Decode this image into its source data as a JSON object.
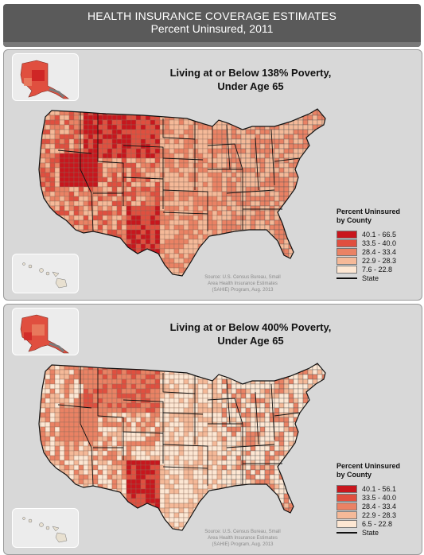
{
  "header": {
    "title": "HEALTH INSURANCE COVERAGE ESTIMATES",
    "subtitle": "Percent Uninsured, 2011"
  },
  "colors": {
    "c1": "#c8161d",
    "c2": "#e04f3f",
    "c3": "#ea8264",
    "c4": "#f5b998",
    "c5": "#fde7d3",
    "panel": "#d8d8d8",
    "header": "#5a5a5a"
  },
  "panels": [
    {
      "title_line1": "Living at or Below 138% Poverty,",
      "title_line2": "Under Age 65",
      "legend_title_line1": "Percent Uninsured",
      "legend_title_line2": "by County",
      "legend": [
        "40.1 - 66.5",
        "33.5 - 40.0",
        "28.4 - 33.4",
        "22.9 - 28.3",
        "7.6 - 22.8"
      ],
      "state_label": "State",
      "source": [
        "Source: U.S. Census Bureau, Small",
        "Area Health Insurance Estimates",
        "(SAHIE) Program, Aug. 2013"
      ]
    },
    {
      "title_line1": "Living at or Below 400% Poverty,",
      "title_line2": "Under Age 65",
      "legend_title_line1": "Percent Uninsured",
      "legend_title_line2": "by County",
      "legend": [
        "40.1 - 56.1",
        "33.5 - 40.0",
        "28.4 - 33.4",
        "22.9 - 28.3",
        "6.5 - 22.8"
      ],
      "state_label": "State",
      "source": [
        "Source: U.S. Census Bureau, Small",
        "Area Health Insurance Estimates",
        "(SAHIE) Program, Aug. 2013"
      ]
    }
  ]
}
